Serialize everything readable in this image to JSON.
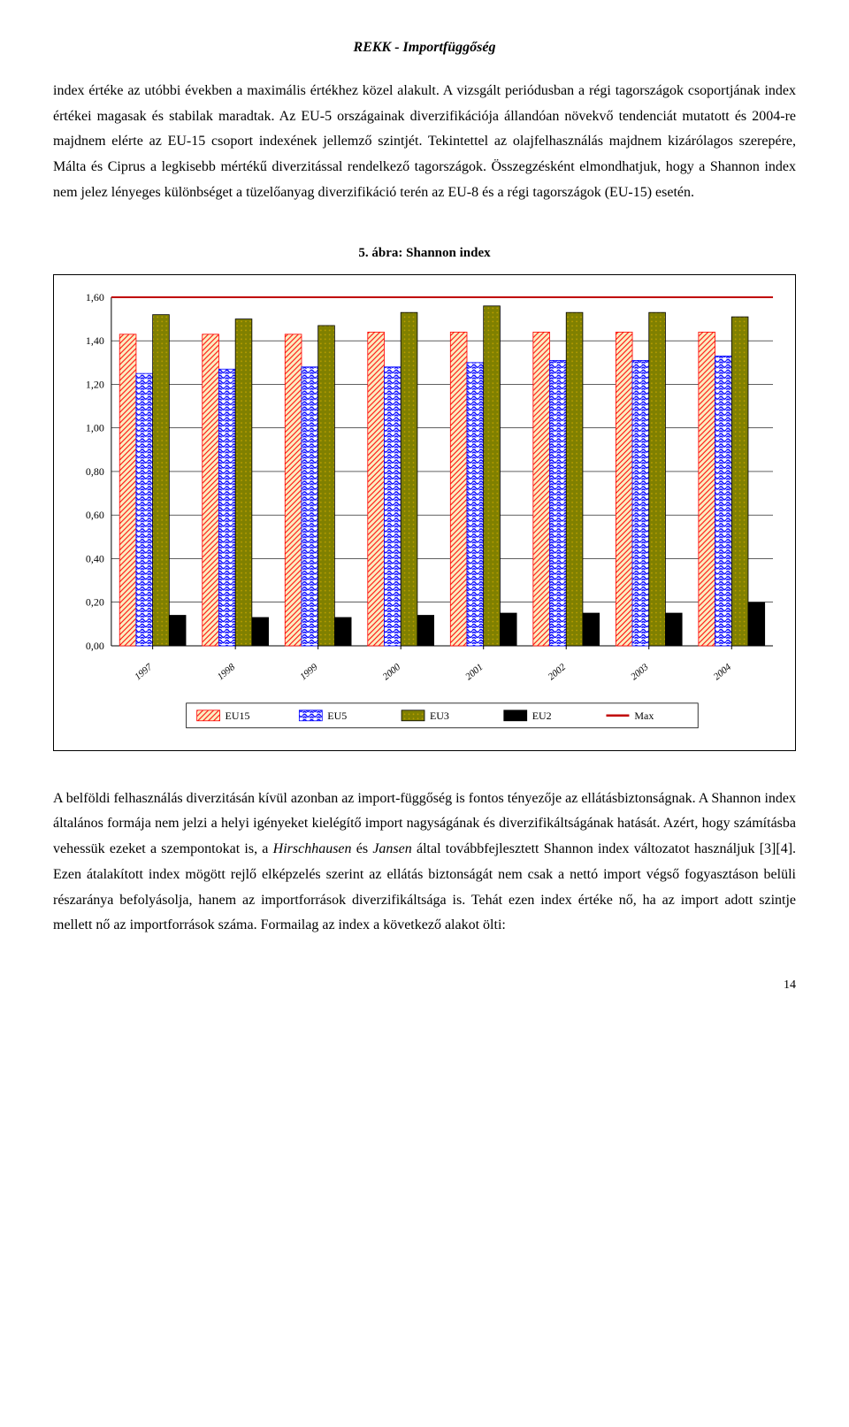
{
  "header": "REKK  -  Importfüggőség",
  "paragraph1": "index értéke az utóbbi években a maximális értékhez közel alakult. A vizsgált periódusban a régi tagországok csoportjának index értékei magasak és stabilak maradtak. Az EU-5 országainak diverzifikációja állandóan növekvő tendenciát mutatott és 2004-re majdnem elérte az EU-15 csoport indexének jellemző szintjét. Tekintettel az olajfelhasználás majdnem kizárólagos szerepére, Málta és Ciprus a legkisebb mértékű diverzitással rendelkező tagországok. Összegzésként elmondhatjuk, hogy a Shannon index nem jelez lényeges különbséget a tüzelőanyag diverzifikáció terén az EU-8 és a régi tagországok (EU-15) esetén.",
  "chart": {
    "title": "5. ábra: Shannon index",
    "type": "bar",
    "categories": [
      "1997",
      "1998",
      "1999",
      "2000",
      "2001",
      "2002",
      "2003",
      "2004"
    ],
    "series": {
      "EU15": [
        1.43,
        1.43,
        1.43,
        1.44,
        1.44,
        1.44,
        1.44,
        1.44
      ],
      "EU5": [
        1.25,
        1.27,
        1.28,
        1.28,
        1.3,
        1.31,
        1.31,
        1.33
      ],
      "EU3": [
        1.52,
        1.5,
        1.47,
        1.53,
        1.56,
        1.53,
        1.53,
        1.51
      ],
      "EU2": [
        0.14,
        0.13,
        0.13,
        0.14,
        0.15,
        0.15,
        0.15,
        0.2
      ]
    },
    "max_line": 1.6,
    "ylim": [
      0,
      1.6
    ],
    "ytick_step": 0.2,
    "bar_colors": {
      "EU15": {
        "fill": "#fbeec1",
        "stroke": "#ff0000",
        "pattern": "diag"
      },
      "EU5": {
        "fill": "#ffffff",
        "stroke": "#0000ff",
        "pattern": "wave"
      },
      "EU3": {
        "fill": "#808000",
        "stroke": "#000000",
        "pattern": "dots"
      },
      "EU2": {
        "fill": "#000000",
        "stroke": "#000000",
        "pattern": "none"
      }
    },
    "max_color": "#c00000",
    "legend": [
      "EU15",
      "EU5",
      "EU3",
      "EU2",
      "Max"
    ],
    "background_color": "#ffffff",
    "grid_color": "#000000",
    "y_label_fontsize": 12,
    "x_label_fontsize": 11,
    "legend_fontsize": 12
  },
  "paragraph2_parts": {
    "p1": "A belföldi felhasználás diverzitásán kívül azonban az import-függőség is fontos tényezője az ellátásbiztonságnak. A Shannon index általános formája nem jelzi a helyi igényeket kielégítő import nagyságának és diverzifikáltságának hatását.   Azért, hogy számításba vehessük ezeket a szempontokat is, a ",
    "i1": "Hirschhausen",
    "p2": " és ",
    "i2": "Jansen",
    "p3": " által továbbfejlesztett Shannon index változatot használjuk [3][4]. Ezen átalakított index mögött rejlő elképzelés szerint az ellátás biztonságát nem csak a nettó import végső fogyasztáson belüli részaránya befolyásolja, hanem az importforrások diverzifikáltsága is. Tehát ezen index értéke nő, ha az import adott szintje mellett nő az importforrások száma. Formailag az index  a következő alakot ölti:"
  },
  "page_number": "14"
}
